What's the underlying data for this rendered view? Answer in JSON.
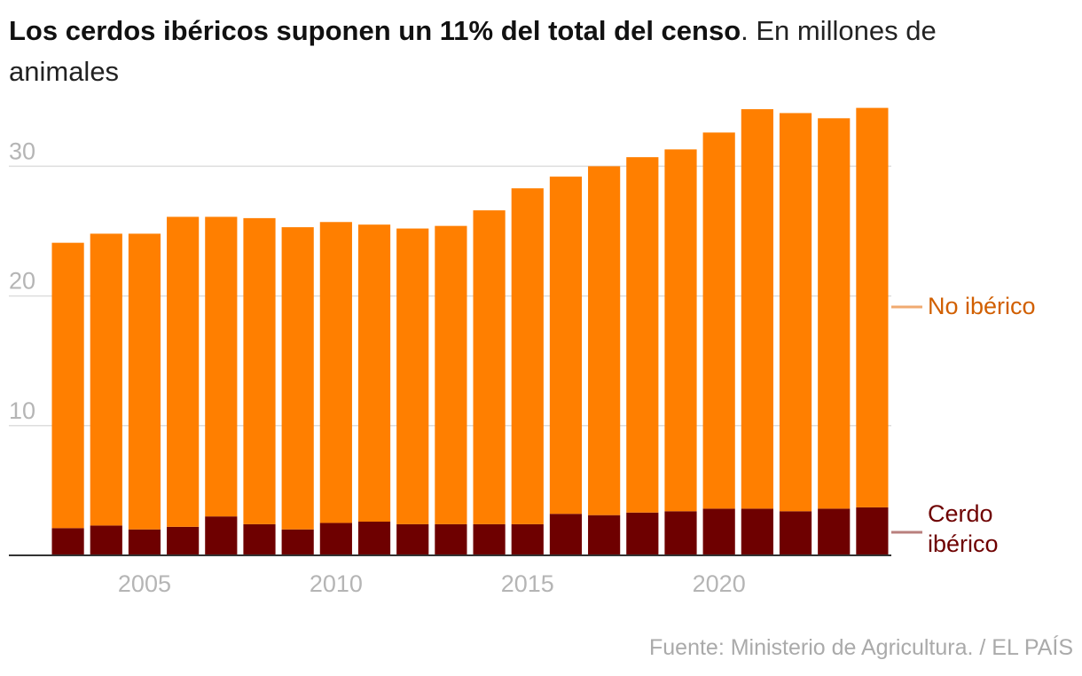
{
  "title": {
    "bold": "Los cerdos ibéricos suponen un 11% del total del censo",
    "rest": ". En millones de animales"
  },
  "source": "Fuente: Ministerio de Agricultura. / EL PAÍS",
  "colors": {
    "no_iberico": "#ff7f00",
    "iberico": "#6e0000",
    "legend_no_iberico_text": "#d15f00",
    "legend_no_iberico_line": "#f0aa70",
    "legend_iberico_line": "#b9807e",
    "grid": "#dddddd",
    "tick": "#b5b5b5"
  },
  "chart_data": {
    "type": "bar",
    "stacked": true,
    "title": "Los cerdos ibéricos suponen un 11% del total del censo. En millones de animales",
    "xlabel": "",
    "ylabel": "",
    "ylim": [
      0,
      34.5
    ],
    "yticks": [
      10,
      20,
      30
    ],
    "xticks": [
      "2005",
      "2010",
      "2015",
      "2020"
    ],
    "categories": [
      "2003",
      "2004",
      "2005",
      "2006",
      "2007",
      "2008",
      "2009",
      "2010",
      "2011",
      "2012",
      "2013",
      "2014",
      "2015",
      "2016",
      "2017",
      "2018",
      "2019",
      "2020",
      "2021",
      "2022",
      "2023",
      "2024"
    ],
    "series": [
      {
        "name": "Cerdo ibérico",
        "values": [
          2.1,
          2.3,
          2.0,
          2.2,
          3.0,
          2.4,
          2.0,
          2.5,
          2.6,
          2.4,
          2.4,
          2.4,
          2.4,
          3.2,
          3.1,
          3.3,
          3.4,
          3.6,
          3.6,
          3.4,
          3.6,
          3.7
        ]
      },
      {
        "name": "No ibérico",
        "values": [
          22.0,
          22.5,
          22.8,
          23.9,
          23.1,
          23.6,
          23.3,
          23.2,
          22.9,
          22.8,
          23.0,
          24.2,
          25.9,
          26.0,
          26.9,
          27.4,
          27.9,
          29.0,
          30.8,
          30.7,
          30.1,
          30.8
        ]
      }
    ],
    "legend": {
      "no_iberico": "No ibérico",
      "iberico_line1": "Cerdo",
      "iberico_line2": "ibérico"
    }
  }
}
